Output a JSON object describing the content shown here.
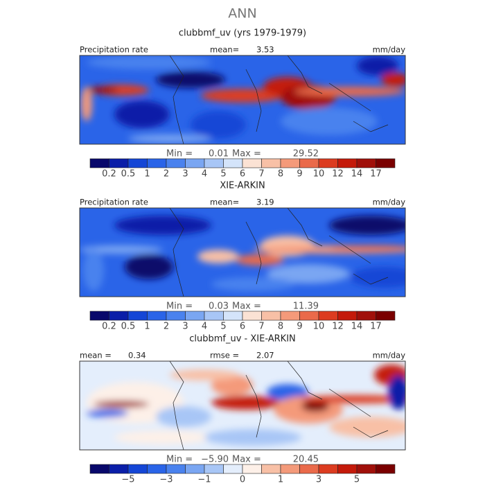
{
  "title": "ANN",
  "panels": [
    {
      "title": "clubbmf_uv (yrs 1979-1979)",
      "left_label": "Precipitation rate",
      "stat_label": "mean=",
      "stat_value": "3.53",
      "units": "mm/day",
      "min_label": "Min =",
      "min_value": "0.01",
      "max_label": "Max =",
      "max_value": "29.52",
      "colorbar_labels": [
        "0.2",
        "0.5",
        "1",
        "2",
        "3",
        "4",
        "5",
        "6",
        "7",
        "8",
        "9",
        "10",
        "12",
        "14",
        "17"
      ]
    },
    {
      "title": "XIE-ARKIN",
      "left_label": "Precipitation rate",
      "stat_label": "mean=",
      "stat_value": "3.19",
      "units": "mm/day",
      "min_label": "Min =",
      "min_value": "0.03",
      "max_label": "Max =",
      "max_value": "11.39",
      "colorbar_labels": [
        "0.2",
        "0.5",
        "1",
        "2",
        "3",
        "4",
        "5",
        "6",
        "7",
        "8",
        "9",
        "10",
        "12",
        "14",
        "17"
      ]
    },
    {
      "title": "clubbmf_uv - XIE-ARKIN",
      "left_label": "mean =",
      "left_value": "0.34",
      "stat_label": "rmse =",
      "stat_value": "2.07",
      "units": "mm/day",
      "min_label": "Min =",
      "min_value": "−5.90",
      "max_label": "Max =",
      "max_value": "20.45",
      "colorbar_labels": [
        "−5",
        "−3",
        "−1",
        "0",
        "1",
        "3",
        "5"
      ]
    }
  ]
}
